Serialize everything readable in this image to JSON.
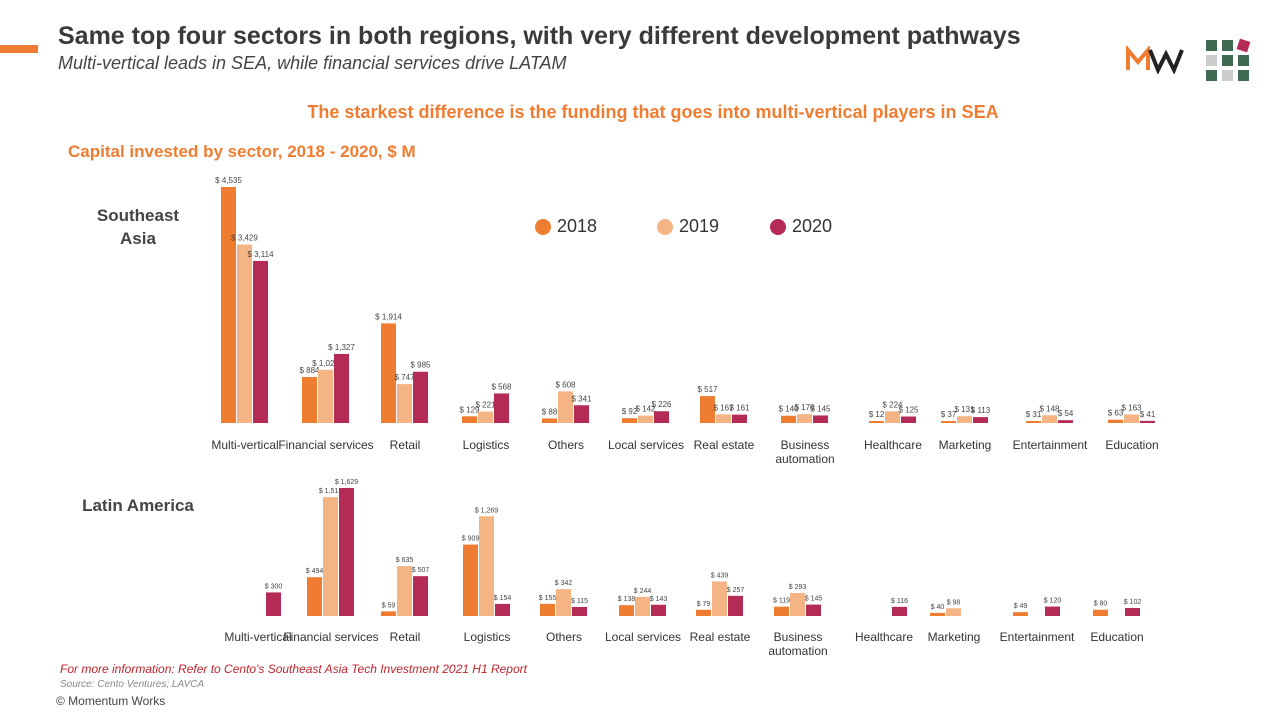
{
  "header": {
    "title": "Same top four sectors in both regions, with very different development pathways",
    "subtitle": "Multi-vertical leads in SEA, while financial services drive LATAM",
    "headline": "The starkest difference is the funding that goes into multi-vertical players in SEA"
  },
  "footer": {
    "more_info": "For more information: Refer to Cento's Southeast Asia Tech Investment 2021 H1 Report",
    "source": "Source: Cento Ventures; LAVCA",
    "copyright": "© Momentum Works"
  },
  "colors": {
    "accent": "#ee7d31",
    "y2018": "#ee7d31",
    "y2019": "#f4b483",
    "y2020": "#b42b55",
    "footnote": "#c0252e"
  },
  "logo": {
    "mark": "MW"
  },
  "chart_data": [
    {
      "type": "bar",
      "title": "Capital invested by sector, 2018 - 2020,  $ M",
      "region_label": "Southeast Asia",
      "legend": {
        "placement": "top-center",
        "entries": [
          "2018",
          "2019",
          "2020"
        ]
      },
      "categories": [
        "Multi-vertical",
        "Financial services",
        "Retail",
        "Logistics",
        "Others",
        "Local services",
        "Real estate",
        "Business automation",
        "Healthcare",
        "Marketing",
        "Entertainment",
        "Education"
      ],
      "series": [
        {
          "name": "2018",
          "values": [
            4535,
            884,
            1914,
            129,
            88,
            92,
            517,
            140,
            12,
            37,
            31,
            63
          ]
        },
        {
          "name": "2019",
          "values": [
            3429,
            1023,
            747,
            221,
            608,
            142,
            167,
            170,
            224,
            131,
            148,
            163
          ]
        },
        {
          "name": "2020",
          "values": [
            3114,
            1327,
            985,
            568,
            341,
            226,
            161,
            145,
            125,
            113,
            54,
            41
          ]
        }
      ],
      "data_labels": [
        [
          "$ 4,535",
          "$ 884",
          "$ 1,914",
          "$ 129",
          "$ 88",
          "$ 92",
          "$ 517",
          "$ 140",
          "$ 12",
          "$ 37",
          "$ 31",
          "$ 63"
        ],
        [
          "$ 3,429",
          "$ 1,023",
          "$ 747",
          "$ 221",
          "$ 608",
          "$ 142",
          "$ 167",
          "$ 170",
          "$ 224",
          "$ 131",
          "$ 148",
          "$ 163"
        ],
        [
          "$ 3,114",
          "$ 1,327",
          "$ 985",
          "$ 568",
          "$ 341",
          "$ 226",
          "$ 161",
          "$ 145",
          "$ 125",
          "$ 113",
          "$ 54",
          "$ 41"
        ]
      ]
    },
    {
      "type": "bar",
      "region_label": "Latin America",
      "categories": [
        "Multi-vertical",
        "Financial services",
        "Retail",
        "Logistics",
        "Others",
        "Local services",
        "Real estate",
        "Business automation",
        "Healthcare",
        "Marketing",
        "Entertainment",
        "Education"
      ],
      "series": [
        {
          "name": "2018",
          "values": [
            null,
            494,
            59,
            909,
            155,
            138,
            79,
            119,
            null,
            40,
            49,
            80
          ]
        },
        {
          "name": "2019",
          "values": [
            null,
            1513,
            635,
            1269,
            342,
            244,
            439,
            293,
            null,
            98,
            null,
            null
          ]
        },
        {
          "name": "2020",
          "values": [
            300,
            1629,
            507,
            154,
            115,
            143,
            257,
            145,
            116,
            null,
            120,
            102
          ]
        }
      ],
      "data_labels": [
        [
          null,
          "$ 494",
          "$ 59",
          "$ 909",
          "$ 155",
          "$ 138",
          "$ 79",
          "$ 119",
          null,
          "$ 40",
          "$ 49",
          "$ 80"
        ],
        [
          null,
          "$ 1,513",
          "$ 635",
          "$ 1,269",
          "$ 342",
          "$ 244",
          "$ 439",
          "$ 293",
          null,
          "$ 98",
          null,
          null
        ],
        [
          "$ 300",
          "$ 1,629",
          "$ 507",
          "$ 154",
          "$ 115",
          "$ 143",
          "$ 257",
          "$ 145",
          "$ 116",
          null,
          "$ 120",
          "$ 102"
        ]
      ]
    }
  ]
}
